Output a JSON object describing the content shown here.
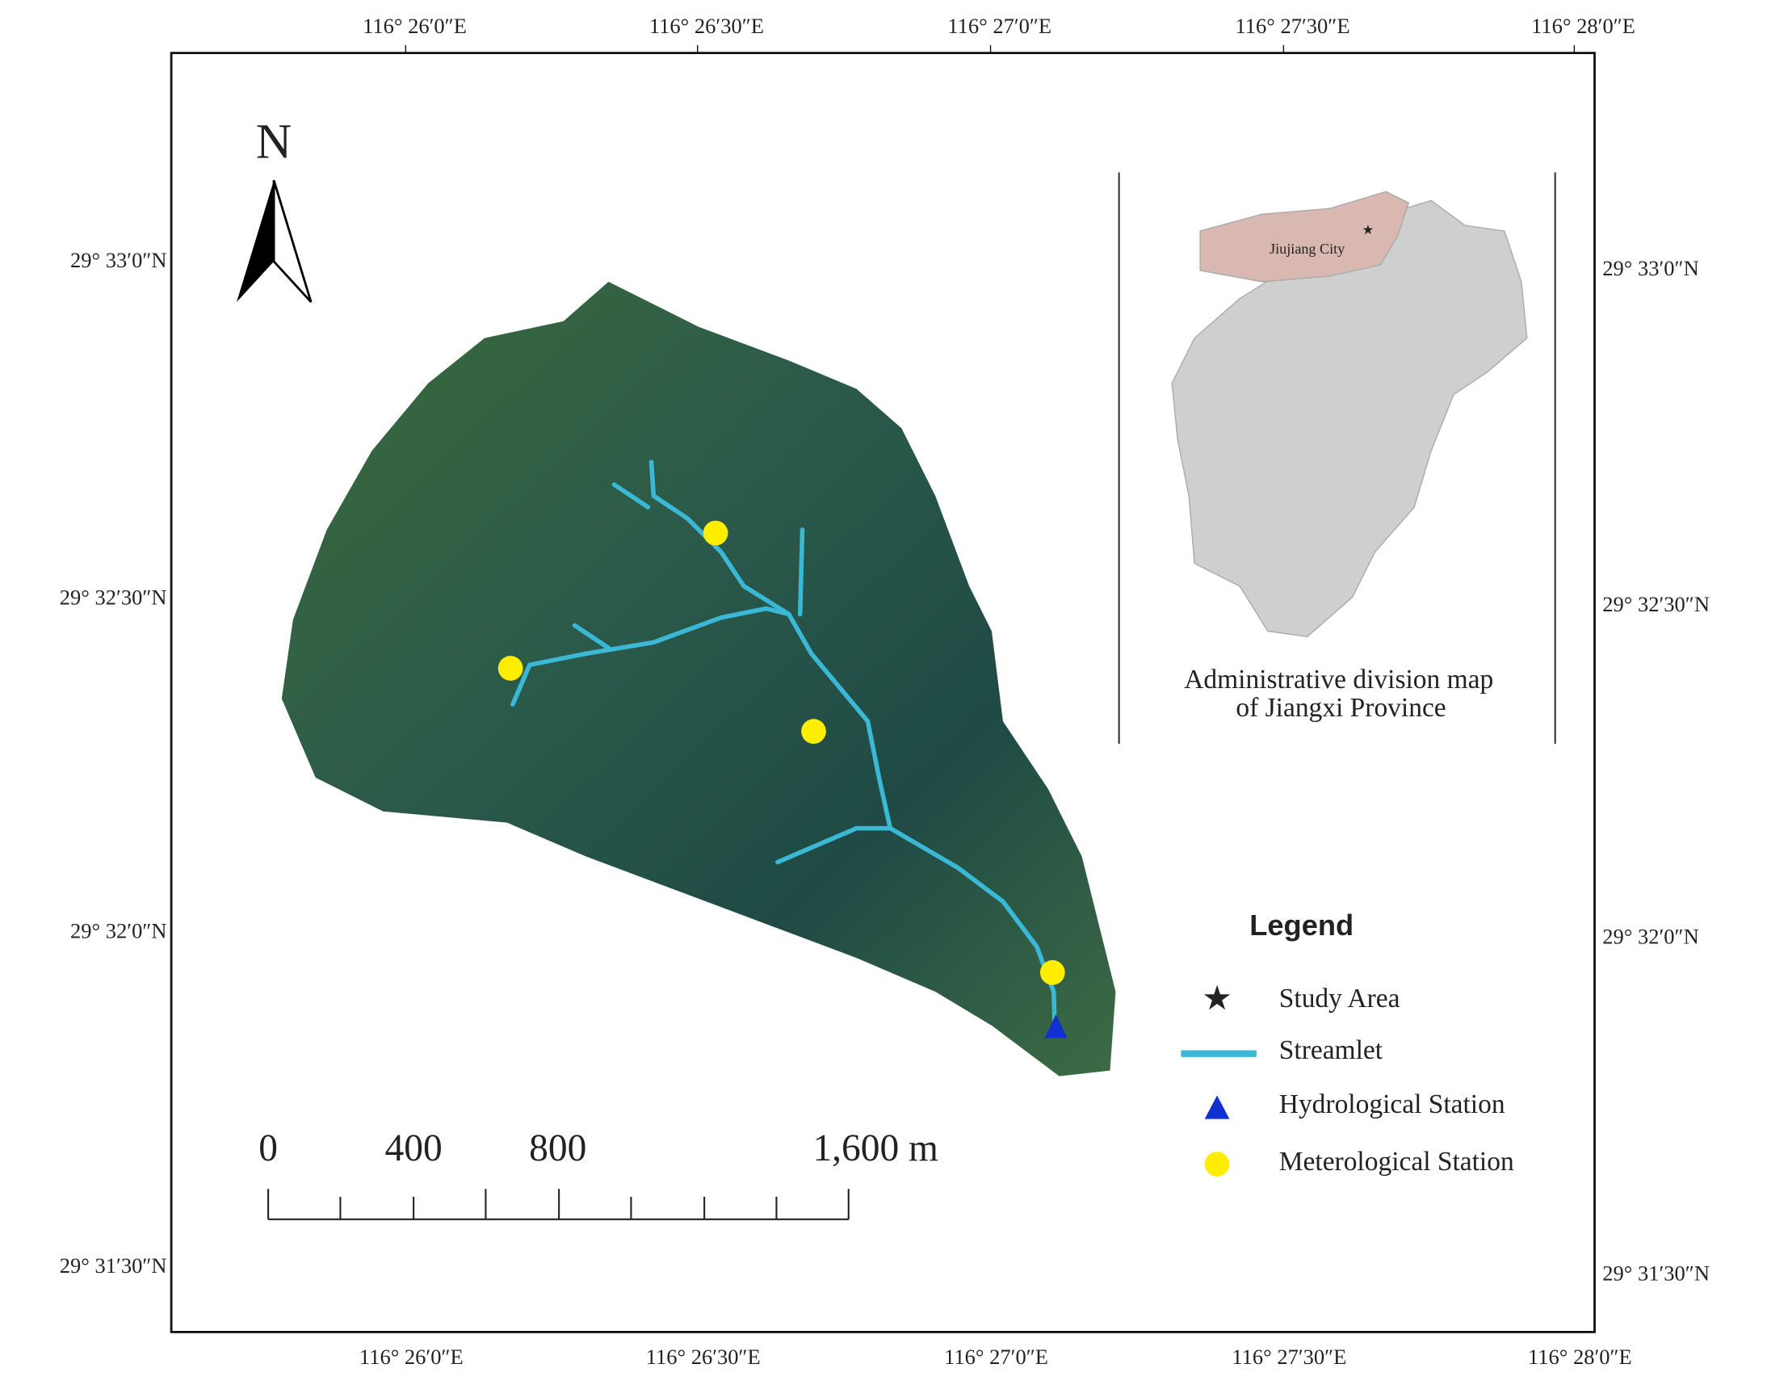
{
  "map": {
    "north_arrow": "N",
    "lon_labels": [
      "116° 26′0″E",
      "116° 26′30″E",
      "116° 27′0″E",
      "116° 27′30″E",
      "116° 28′0″E"
    ],
    "lat_labels": [
      "29° 33′0″N",
      "29° 32′30″N",
      "29° 32′0″N",
      "29° 31′30″N"
    ],
    "inset": {
      "city": "Jiujiang City",
      "caption": [
        "Administrative division map",
        "of Jiangxi Province"
      ]
    },
    "legend": {
      "title": "Legend",
      "items": [
        "Study Area",
        "Streamlet",
        "Hydrological Station",
        "Meterological Station"
      ]
    },
    "scale_bar": {
      "labels": [
        "0",
        "400",
        "800",
        "1,600 m"
      ]
    }
  }
}
